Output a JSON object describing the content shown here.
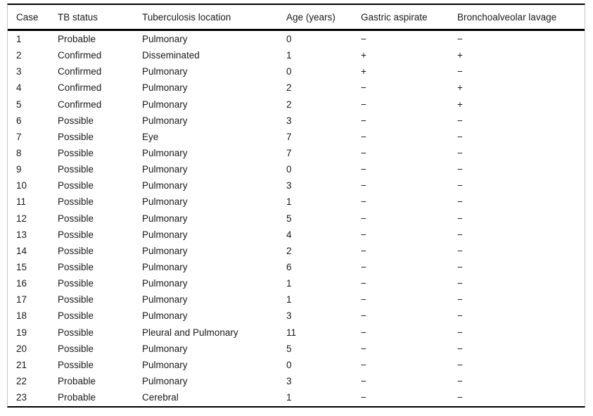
{
  "table": {
    "columns": [
      {
        "key": "case",
        "label": "Case"
      },
      {
        "key": "tb_status",
        "label": "TB status"
      },
      {
        "key": "location",
        "label": "Tuberculosis location"
      },
      {
        "key": "age",
        "label": "Age (years)"
      },
      {
        "key": "gastric_aspirate",
        "label": "Gastric aspirate"
      },
      {
        "key": "bronchoalveolar_lavage",
        "label": "Bronchoalveolar lavage"
      }
    ],
    "rows": [
      {
        "case": "1",
        "tb_status": "Probable",
        "location": "Pulmonary",
        "age": "0",
        "gastric_aspirate": "−",
        "bronchoalveolar_lavage": "−"
      },
      {
        "case": "2",
        "tb_status": "Confirmed",
        "location": "Disseminated",
        "age": "1",
        "gastric_aspirate": "+",
        "bronchoalveolar_lavage": "+"
      },
      {
        "case": "3",
        "tb_status": "Confirmed",
        "location": "Pulmonary",
        "age": "0",
        "gastric_aspirate": "+",
        "bronchoalveolar_lavage": "−"
      },
      {
        "case": "4",
        "tb_status": "Confirmed",
        "location": "Pulmonary",
        "age": "2",
        "gastric_aspirate": "−",
        "bronchoalveolar_lavage": "+"
      },
      {
        "case": "5",
        "tb_status": "Confirmed",
        "location": "Pulmonary",
        "age": "2",
        "gastric_aspirate": "−",
        "bronchoalveolar_lavage": "+"
      },
      {
        "case": "6",
        "tb_status": "Possible",
        "location": "Pulmonary",
        "age": "3",
        "gastric_aspirate": "−",
        "bronchoalveolar_lavage": "−"
      },
      {
        "case": "7",
        "tb_status": "Possible",
        "location": "Eye",
        "age": "7",
        "gastric_aspirate": "−",
        "bronchoalveolar_lavage": "−"
      },
      {
        "case": "8",
        "tb_status": "Possible",
        "location": "Pulmonary",
        "age": "7",
        "gastric_aspirate": "−",
        "bronchoalveolar_lavage": "−"
      },
      {
        "case": "9",
        "tb_status": "Possible",
        "location": "Pulmonary",
        "age": "0",
        "gastric_aspirate": "−",
        "bronchoalveolar_lavage": "−"
      },
      {
        "case": "10",
        "tb_status": "Possible",
        "location": "Pulmonary",
        "age": "3",
        "gastric_aspirate": "−",
        "bronchoalveolar_lavage": "−"
      },
      {
        "case": "11",
        "tb_status": "Possible",
        "location": "Pulmonary",
        "age": "1",
        "gastric_aspirate": "−",
        "bronchoalveolar_lavage": "−"
      },
      {
        "case": "12",
        "tb_status": "Possible",
        "location": "Pulmonary",
        "age": "5",
        "gastric_aspirate": "−",
        "bronchoalveolar_lavage": "−"
      },
      {
        "case": "13",
        "tb_status": "Possible",
        "location": "Pulmonary",
        "age": "4",
        "gastric_aspirate": "−",
        "bronchoalveolar_lavage": "−"
      },
      {
        "case": "14",
        "tb_status": "Possible",
        "location": "Pulmonary",
        "age": "2",
        "gastric_aspirate": "−",
        "bronchoalveolar_lavage": "−"
      },
      {
        "case": "15",
        "tb_status": "Possible",
        "location": "Pulmonary",
        "age": "6",
        "gastric_aspirate": "−",
        "bronchoalveolar_lavage": "−"
      },
      {
        "case": "16",
        "tb_status": "Possible",
        "location": "Pulmonary",
        "age": "1",
        "gastric_aspirate": "−",
        "bronchoalveolar_lavage": "−"
      },
      {
        "case": "17",
        "tb_status": "Possible",
        "location": "Pulmonary",
        "age": "1",
        "gastric_aspirate": "−",
        "bronchoalveolar_lavage": "−"
      },
      {
        "case": "18",
        "tb_status": "Possible",
        "location": "Pulmonary",
        "age": "3",
        "gastric_aspirate": "−",
        "bronchoalveolar_lavage": "−"
      },
      {
        "case": "19",
        "tb_status": "Possible",
        "location": "Pleural and Pulmonary",
        "age": "11",
        "gastric_aspirate": "−",
        "bronchoalveolar_lavage": "−"
      },
      {
        "case": "20",
        "tb_status": "Possible",
        "location": "Pulmonary",
        "age": "5",
        "gastric_aspirate": "−",
        "bronchoalveolar_lavage": "−"
      },
      {
        "case": "21",
        "tb_status": "Possible",
        "location": "Pulmonary",
        "age": "0",
        "gastric_aspirate": "−",
        "bronchoalveolar_lavage": "−"
      },
      {
        "case": "22",
        "tb_status": "Probable",
        "location": "Pulmonary",
        "age": "3",
        "gastric_aspirate": "−",
        "bronchoalveolar_lavage": "−"
      },
      {
        "case": "23",
        "tb_status": "Probable",
        "location": "Cerebral",
        "age": "1",
        "gastric_aspirate": "−",
        "bronchoalveolar_lavage": "−"
      }
    ],
    "colors": {
      "rule": "#000000",
      "figure_edge": "#c6c6c6",
      "text": "#1a1a1a",
      "background": "#ffffff"
    }
  }
}
